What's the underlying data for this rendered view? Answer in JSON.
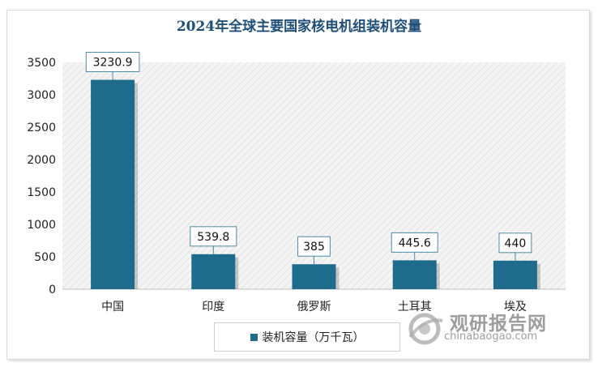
{
  "chart_data": {
    "type": "bar",
    "title": "2024年全球主要国家核电机组装机容量",
    "categories": [
      "中国",
      "印度",
      "俄罗斯",
      "土耳其",
      "埃及"
    ],
    "series": [
      {
        "name": "装机容量（万千瓦）",
        "values": [
          3230.9,
          539.8,
          385,
          445.6,
          440
        ]
      }
    ],
    "data_labels": [
      "3230.9",
      "539.8",
      "385",
      "445.6",
      "440"
    ],
    "ylim": [
      0,
      3500
    ],
    "yticks": [
      0,
      500,
      1000,
      1500,
      2000,
      2500,
      3000,
      3500
    ],
    "xlabel": "",
    "ylabel": "",
    "legend_position": "bottom",
    "bar_color": "#1f6b8c"
  },
  "watermark": {
    "name": "观研报告网",
    "url": "chinabaogao.com"
  }
}
